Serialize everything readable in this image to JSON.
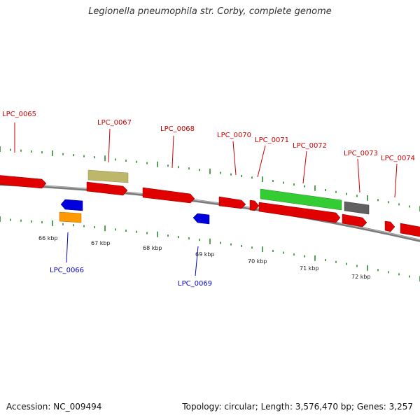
{
  "title": "Legionella pneumophila str. Corby, complete genome",
  "footer": {
    "accession": "Accession: NC_009494",
    "topology": "Topology: circular; Length: 3,576,470 bp; Genes: 3,257"
  },
  "colors": {
    "forward_gene": "#e00000",
    "reverse_gene": "#0000dd",
    "green_feature": "#33cc33",
    "tan_feature": "#bdb76b",
    "gray_feature": "#555555",
    "orange_feature": "#ff9900",
    "backbone": "#888888",
    "tick": "#2a8a2a",
    "forward_label": "#cc0000",
    "reverse_label": "#0000cc"
  },
  "kbp_labels": [
    "66 kbp",
    "67 kbp",
    "68 kbp",
    "69 kbp",
    "70 kbp",
    "71 kbp",
    "72 kbp"
  ],
  "gene_labels": [
    {
      "text": "LPC_0065",
      "strand": "forward"
    },
    {
      "text": "LPC_0066",
      "strand": "reverse"
    },
    {
      "text": "LPC_0067",
      "strand": "forward"
    },
    {
      "text": "LPC_0068",
      "strand": "forward"
    },
    {
      "text": "LPC_0069",
      "strand": "reverse"
    },
    {
      "text": "LPC_0070",
      "strand": "forward"
    },
    {
      "text": "LPC_0071",
      "strand": "forward"
    },
    {
      "text": "LPC_0072",
      "strand": "forward"
    },
    {
      "text": "LPC_0073",
      "strand": "forward"
    },
    {
      "text": "LPC_0074",
      "strand": "forward"
    }
  ]
}
